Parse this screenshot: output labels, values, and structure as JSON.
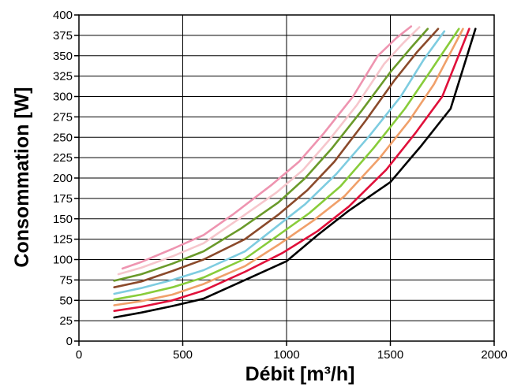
{
  "chart_data": {
    "type": "line",
    "title": "",
    "xlabel": "Débit [m³/h]",
    "ylabel": "Consommation  [W]",
    "xlim": [
      0,
      2000
    ],
    "ylim": [
      0,
      400
    ],
    "xticks": [
      0,
      500,
      1000,
      1500,
      2000
    ],
    "yticks": [
      0,
      25,
      50,
      75,
      100,
      125,
      150,
      175,
      200,
      225,
      250,
      275,
      300,
      325,
      350,
      375,
      400
    ],
    "grid": true,
    "legend": "none",
    "series": [
      {
        "color": "#000000",
        "x": [
          170,
          300,
          450,
          600,
          800,
          1000,
          1150,
          1300,
          1500,
          1650,
          1790,
          1910
        ],
        "y": [
          29,
          35,
          43,
          52,
          75,
          98,
          130,
          160,
          195,
          240,
          285,
          383
        ]
      },
      {
        "color": "#e0103a",
        "x": [
          170,
          300,
          450,
          600,
          800,
          980,
          1150,
          1300,
          1480,
          1620,
          1750,
          1880
        ],
        "y": [
          37,
          42,
          50,
          62,
          85,
          108,
          135,
          165,
          210,
          255,
          300,
          383
        ]
      },
      {
        "color": "#f0a06a",
        "x": [
          170,
          300,
          450,
          600,
          800,
          960,
          1130,
          1280,
          1450,
          1590,
          1710,
          1850
        ],
        "y": [
          44,
          49,
          57,
          70,
          92,
          118,
          148,
          178,
          225,
          270,
          315,
          383
        ]
      },
      {
        "color": "#88cc3a",
        "x": [
          170,
          300,
          450,
          600,
          800,
          950,
          1110,
          1260,
          1420,
          1570,
          1690,
          1830
        ],
        "y": [
          51,
          57,
          66,
          78,
          101,
          128,
          157,
          190,
          237,
          285,
          330,
          383
        ]
      },
      {
        "color": "#7ecce0",
        "x": [
          170,
          300,
          450,
          600,
          800,
          940,
          1090,
          1240,
          1400,
          1550,
          1660,
          1760
        ],
        "y": [
          58,
          65,
          75,
          87,
          110,
          138,
          168,
          205,
          252,
          300,
          345,
          380
        ]
      },
      {
        "color": "#8b4a2b",
        "x": [
          170,
          300,
          450,
          600,
          800,
          960,
          1100,
          1230,
          1380,
          1520,
          1630,
          1730
        ],
        "y": [
          66,
          73,
          86,
          100,
          125,
          155,
          185,
          220,
          270,
          320,
          355,
          383
        ]
      },
      {
        "color": "#6a9a2a",
        "x": [
          170,
          300,
          450,
          600,
          780,
          960,
          1090,
          1220,
          1360,
          1500,
          1600,
          1680
        ],
        "y": [
          74,
          82,
          95,
          110,
          138,
          170,
          200,
          237,
          282,
          330,
          360,
          383
        ]
      },
      {
        "color": "#f6c6cc",
        "x": [
          190,
          300,
          450,
          600,
          760,
          950,
          1080,
          1200,
          1340,
          1470,
          1560,
          1640
        ],
        "y": [
          82,
          90,
          104,
          120,
          148,
          182,
          210,
          245,
          290,
          340,
          365,
          385
        ]
      },
      {
        "color": "#ee94b0",
        "x": [
          210,
          300,
          450,
          600,
          740,
          930,
          1060,
          1180,
          1320,
          1440,
          1530,
          1600
        ],
        "y": [
          89,
          97,
          113,
          130,
          155,
          192,
          220,
          255,
          300,
          350,
          372,
          386
        ]
      }
    ]
  }
}
